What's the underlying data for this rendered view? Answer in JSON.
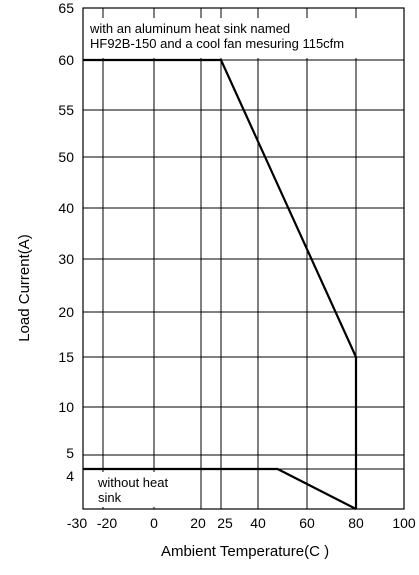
{
  "chart_data": {
    "type": "line",
    "xlabel": "Ambient Temperature(C )",
    "ylabel": "Load Current(A)",
    "x_ticks": [
      {
        "label": "-30",
        "value": -30
      },
      {
        "label": "-20",
        "value": -20
      },
      {
        "label": "0",
        "value": 0
      },
      {
        "label": "20",
        "value": 20
      },
      {
        "label": "25",
        "value": 25
      },
      {
        "label": "40",
        "value": 40
      },
      {
        "label": "60",
        "value": 60
      },
      {
        "label": "80",
        "value": 80
      },
      {
        "label": "100",
        "value": 100
      }
    ],
    "y_ticks": [
      {
        "label": "4",
        "value": 4
      },
      {
        "label": "5",
        "value": 5
      },
      {
        "label": "10",
        "value": 10
      },
      {
        "label": "15",
        "value": 15
      },
      {
        "label": "20",
        "value": 20
      },
      {
        "label": "30",
        "value": 30
      },
      {
        "label": "40",
        "value": 40
      },
      {
        "label": "50",
        "value": 50
      },
      {
        "label": "55",
        "value": 55
      },
      {
        "label": "60",
        "value": 60
      },
      {
        "label": "65",
        "value": 65
      }
    ],
    "grid": true,
    "annotations": [
      {
        "lines": [
          "with an aluminum heat sink named",
          "HF92B-150 and a cool fan mesuring 115cfm"
        ],
        "placement": "top-left"
      },
      {
        "lines": [
          "without heat",
          "sink"
        ],
        "placement": "bottom-left"
      }
    ],
    "series": [
      {
        "points": [
          [
            -30,
            60
          ],
          [
            25,
            60
          ],
          [
            80,
            15
          ],
          [
            80,
            0
          ]
        ]
      },
      {
        "points": [
          [
            -30,
            4
          ],
          [
            48,
            4
          ],
          [
            80,
            0
          ]
        ]
      }
    ],
    "xlim": [
      -30,
      100
    ],
    "ylim": [
      0,
      65
    ]
  }
}
